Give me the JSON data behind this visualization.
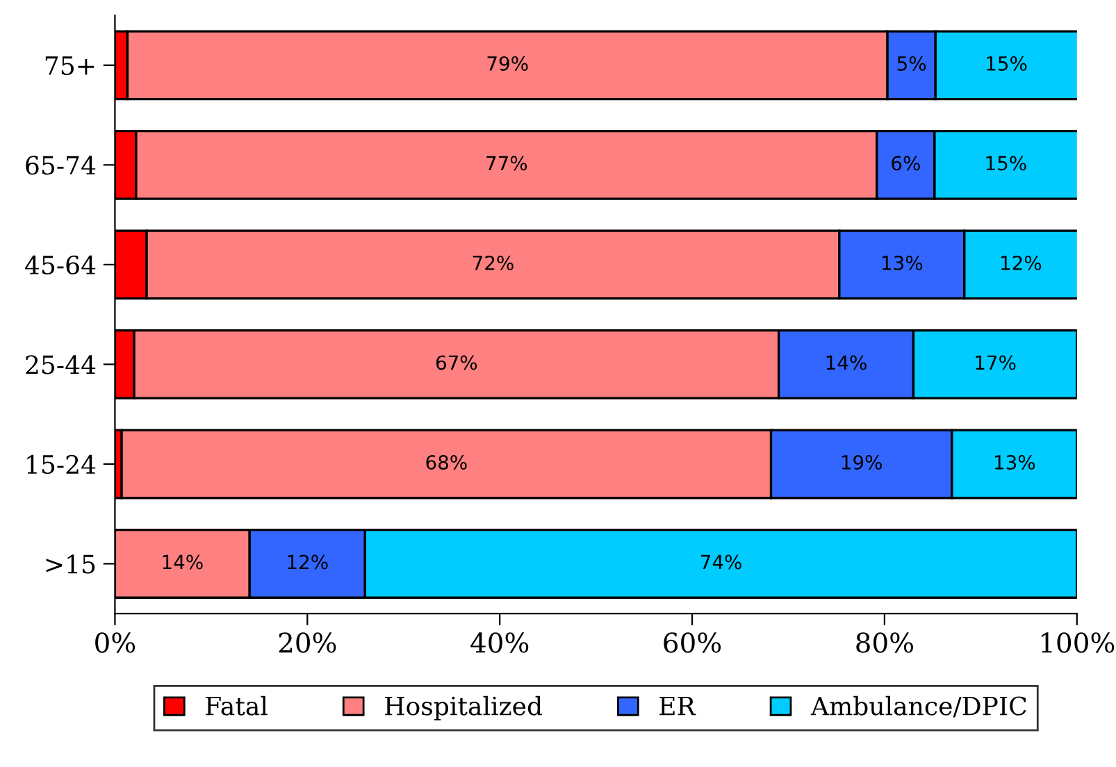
{
  "chart_data": {
    "type": "bar",
    "orientation": "horizontal",
    "stacked": true,
    "categories": [
      "75+",
      "65-74",
      "45-64",
      "25-44",
      "15-24",
      ">15"
    ],
    "series": [
      {
        "name": "Fatal",
        "color": "#ff0000",
        "values": [
          1.3,
          2.2,
          3.3,
          2,
          0.7,
          0
        ],
        "value_labels": [
          null,
          null,
          null,
          null,
          null,
          null
        ]
      },
      {
        "name": "Hospitalized",
        "color": "#ff8080",
        "values": [
          79,
          77,
          72,
          67,
          67.5,
          14
        ],
        "value_labels": [
          "79%",
          "77%",
          "72%",
          "67%",
          "68%",
          "14%"
        ]
      },
      {
        "name": "ER",
        "color": "#3366ff",
        "values": [
          5,
          6,
          13,
          14,
          18.8,
          12
        ],
        "value_labels": [
          "5%",
          "6%",
          "13%",
          "14%",
          "19%",
          "12%"
        ]
      },
      {
        "name": "Ambulance/DPIC",
        "color": "#00ccff",
        "values": [
          15,
          15,
          12,
          17,
          13,
          74
        ],
        "value_labels": [
          "15%",
          "15%",
          "12%",
          "17%",
          "13%",
          "74%"
        ]
      }
    ],
    "xlim": [
      0,
      100
    ],
    "xticks": [
      {
        "value": 0,
        "label": "0%"
      },
      {
        "value": 20,
        "label": "20%"
      },
      {
        "value": 40,
        "label": "40%"
      },
      {
        "value": 60,
        "label": "60%"
      },
      {
        "value": 80,
        "label": "80%"
      },
      {
        "value": 100,
        "label": "100%"
      }
    ],
    "grid": false,
    "legend": "bottom"
  }
}
